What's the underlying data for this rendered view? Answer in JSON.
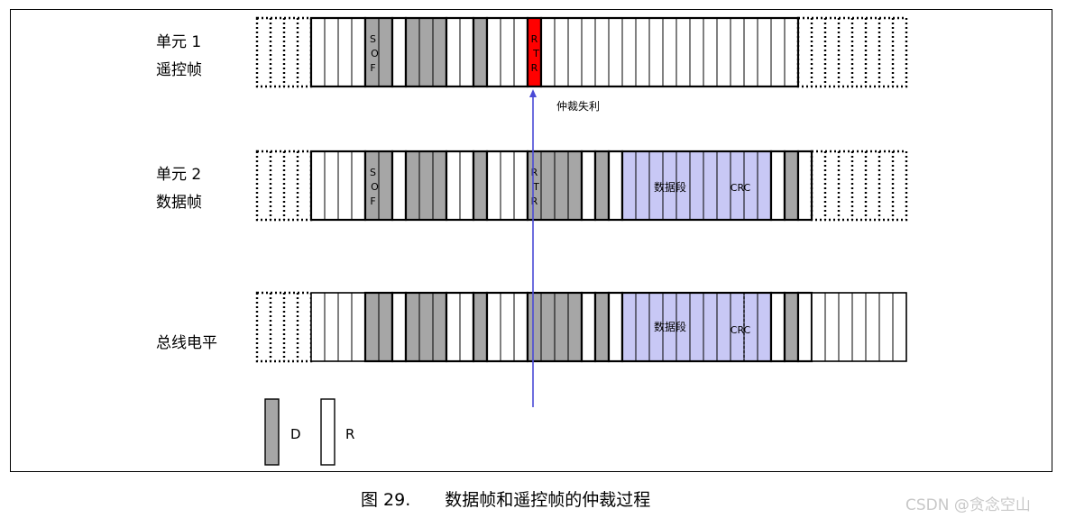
{
  "rows": [
    {
      "name_line1": "单元 1",
      "name_line2": "遥控帧"
    },
    {
      "name_line1": "单元 2",
      "name_line2": "数据帧"
    },
    {
      "name_line1": "总线电平",
      "name_line2": ""
    }
  ],
  "field_labels": {
    "sof": [
      "S",
      "O",
      "F"
    ],
    "rtr": [
      "R",
      "T",
      "R"
    ],
    "data_field": "数据段",
    "crc": "CRC"
  },
  "arbitration_lost": "仲裁失利",
  "legend": {
    "dominant_label": "D",
    "recessive_label": "R"
  },
  "caption": {
    "number": "图 29.",
    "text": "数据帧和遥控帧的仲裁过程"
  },
  "watermark": "CSDN @贪念空山",
  "colors": {
    "dominant_fill": "#a6a6a6",
    "recessive_fill": "#ffffff",
    "lost_bit_fill": "#ff0000",
    "data_field_fill": "#c8c8f5",
    "arrow": "#4a4ad6"
  }
}
